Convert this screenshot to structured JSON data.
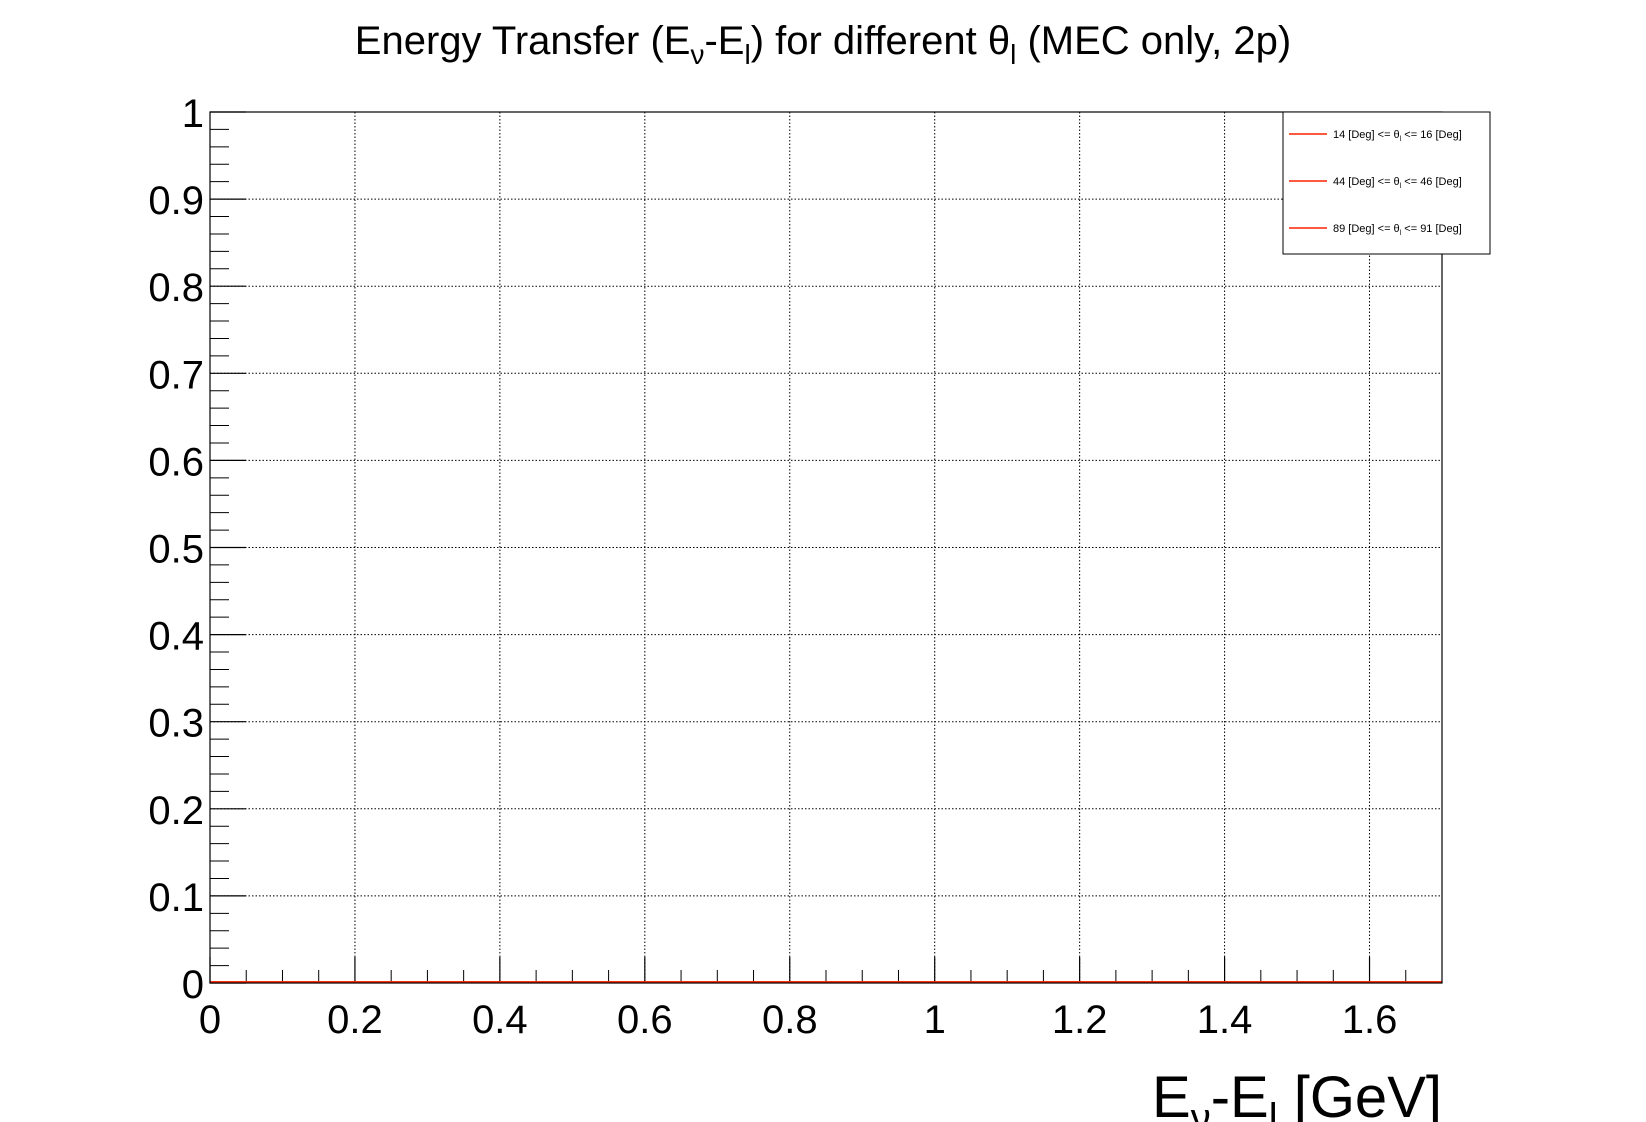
{
  "chart_data": {
    "type": "line",
    "title": {
      "prefix": "Energy Transfer (E",
      "sub1": "ν",
      "mid": "-E",
      "sub2": "l",
      "mid2": ") for different θ",
      "sub3": "l",
      "suffix": " (MEC only, 2p)"
    },
    "xlabel": {
      "prefix": "E",
      "sub1": "ν",
      "mid": "-E",
      "sub2": "l",
      "suffix": " [GeV]"
    },
    "ylabel": "",
    "xlim": [
      0,
      1.7
    ],
    "ylim": [
      0,
      1
    ],
    "x_ticks": [
      0,
      0.2,
      0.4,
      0.6,
      0.8,
      1,
      1.2,
      1.4,
      1.6
    ],
    "x_tick_labels": [
      "0",
      "0.2",
      "0.4",
      "0.6",
      "0.8",
      "1",
      "1.2",
      "1.4",
      "1.6"
    ],
    "y_ticks": [
      0,
      0.1,
      0.2,
      0.3,
      0.4,
      0.5,
      0.6,
      0.7,
      0.8,
      0.9,
      1
    ],
    "y_tick_labels": [
      "0",
      "0.1",
      "0.2",
      "0.3",
      "0.4",
      "0.5",
      "0.6",
      "0.7",
      "0.8",
      "0.9",
      "1"
    ],
    "grid": true,
    "legend_position": "top-right",
    "series": [
      {
        "name": "14 [Deg] <= θl <= 16 [Deg]",
        "label_parts": [
          "14 [Deg] <= θ",
          "l",
          " <= 16 [Deg]"
        ],
        "color": "#ff2200",
        "x": [
          0,
          1.7
        ],
        "y": [
          0,
          0
        ]
      },
      {
        "name": "44 [Deg] <= θl <= 46 [Deg]",
        "label_parts": [
          "44 [Deg] <= θ",
          "l",
          " <= 46 [Deg]"
        ],
        "color": "#ff2200",
        "x": [
          0,
          1.7
        ],
        "y": [
          0,
          0
        ]
      },
      {
        "name": "89 [Deg] <= θl <= 91 [Deg]",
        "label_parts": [
          "89 [Deg] <= θ",
          "l",
          " <= 91 [Deg]"
        ],
        "color": "#ff2200",
        "x": [
          0,
          1.7
        ],
        "y": [
          0,
          0
        ]
      }
    ]
  }
}
